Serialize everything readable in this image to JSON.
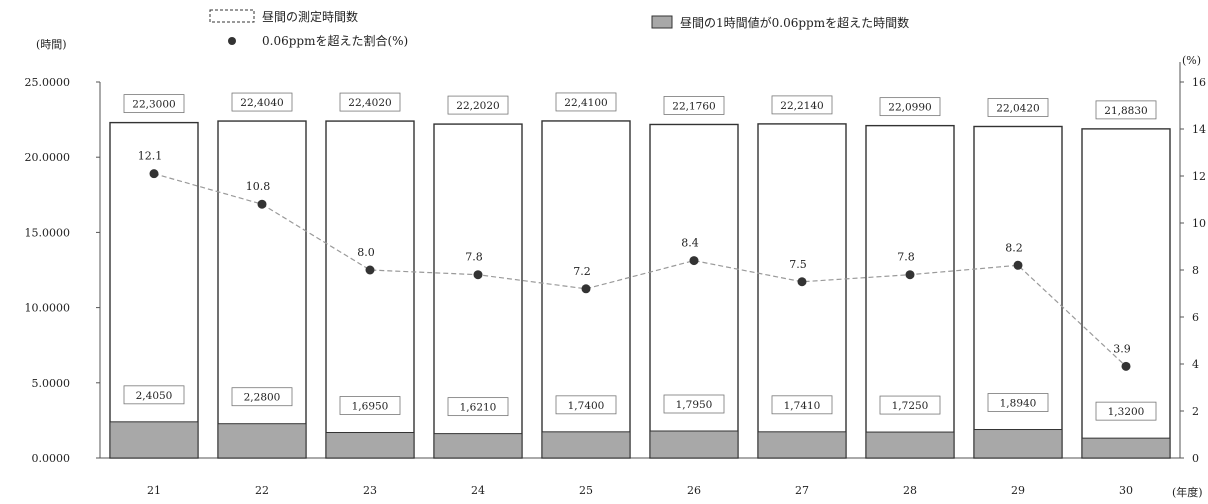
{
  "chart_data": {
    "type": "bar",
    "units": {
      "left": "(時間)",
      "right": "(%)",
      "x": "(年度)"
    },
    "legend": {
      "total_hours": "昼間の測定時間数",
      "exceed_hours": "昼間の1時間値が0.06ppmを超えた時間数",
      "ratio": "0.06ppmを超えた割合(%)"
    },
    "categories": [
      "21",
      "22",
      "23",
      "24",
      "25",
      "26",
      "27",
      "28",
      "29",
      "30"
    ],
    "series": [
      {
        "name": "昼間の測定時間数",
        "values": [
          22300,
          22404,
          22402,
          22202,
          22410,
          22176,
          22214,
          22099,
          22042,
          21883
        ],
        "labels": [
          "22,3000",
          "22,4040",
          "22,4020",
          "22,2020",
          "22,4100",
          "22,1760",
          "22,2140",
          "22,0990",
          "22,0420",
          "21,8830"
        ]
      },
      {
        "name": "昼間の1時間値が0.06ppmを超えた時間数",
        "values": [
          2405,
          2280,
          1695,
          1621,
          1740,
          1795,
          1741,
          1725,
          1894,
          1320
        ],
        "labels": [
          "2,4050",
          "2,2800",
          "1,6950",
          "1,6210",
          "1,7400",
          "1,7950",
          "1,7410",
          "1,7250",
          "1,8940",
          "1,3200"
        ]
      },
      {
        "name": "0.06ppmを超えた割合(%)",
        "values": [
          12.1,
          10.8,
          8.0,
          7.8,
          7.2,
          8.4,
          7.5,
          7.8,
          8.2,
          3.9
        ],
        "labels": [
          "12.1",
          "10.8",
          "8.0",
          "7.8",
          "7.2",
          "8.4",
          "7.5",
          "7.8",
          "8.2",
          "3.9"
        ]
      }
    ],
    "y_left": {
      "ticks": [
        "0.0000",
        "5.0000",
        "10.0000",
        "15.0000",
        "20.0000",
        "25.0000"
      ],
      "ylim": [
        0,
        25000
      ]
    },
    "y_right": {
      "ticks": [
        "0",
        "2",
        "4",
        "6",
        "8",
        "10",
        "12",
        "14",
        "16"
      ],
      "ylim": [
        0,
        16
      ]
    },
    "grid": false,
    "legend_position": "top",
    "colors": {
      "bar_total_fill": "#ffffff",
      "bar_exceed_fill": "#a8a8a8",
      "bar_stroke": "#333333",
      "line": "#9a9a9a",
      "point": "#333333"
    }
  }
}
